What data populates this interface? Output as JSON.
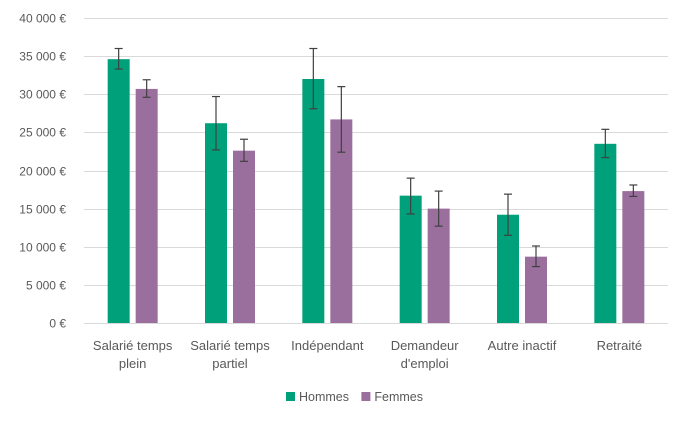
{
  "chart_data": {
    "type": "bar",
    "categories": [
      [
        "Salarié temps",
        "plein"
      ],
      [
        "Salarié temps",
        "partiel"
      ],
      [
        "Indépendant"
      ],
      [
        "Demandeur",
        "d'emploi"
      ],
      [
        "Autre inactif"
      ],
      [
        "Retraité"
      ]
    ],
    "series": [
      {
        "name": "Hommes",
        "color": "#00a07a",
        "values": [
          34600,
          26200,
          32000,
          16700,
          14200,
          23500
        ],
        "err_low": [
          33300,
          22700,
          28100,
          14300,
          11500,
          21700
        ],
        "err_high": [
          36000,
          29700,
          36000,
          19000,
          16900,
          25400
        ]
      },
      {
        "name": "Femmes",
        "color": "#9a6f9e",
        "values": [
          30700,
          22600,
          26700,
          15000,
          8700,
          17300
        ],
        "err_low": [
          29600,
          21200,
          22400,
          12700,
          7400,
          16600
        ],
        "err_high": [
          31900,
          24100,
          31000,
          17300,
          10100,
          18100
        ]
      }
    ],
    "ylim": [
      0,
      40000
    ],
    "yticks": [
      0,
      5000,
      10000,
      15000,
      20000,
      25000,
      30000,
      35000,
      40000
    ],
    "ytick_labels": [
      "0 €",
      "5 000 €",
      "10 000 €",
      "15 000 €",
      "20 000 €",
      "25 000 €",
      "30 000 €",
      "35 000 €",
      "40 000 €"
    ],
    "grid": true,
    "legend": "bottom-center",
    "error_bars": true
  }
}
